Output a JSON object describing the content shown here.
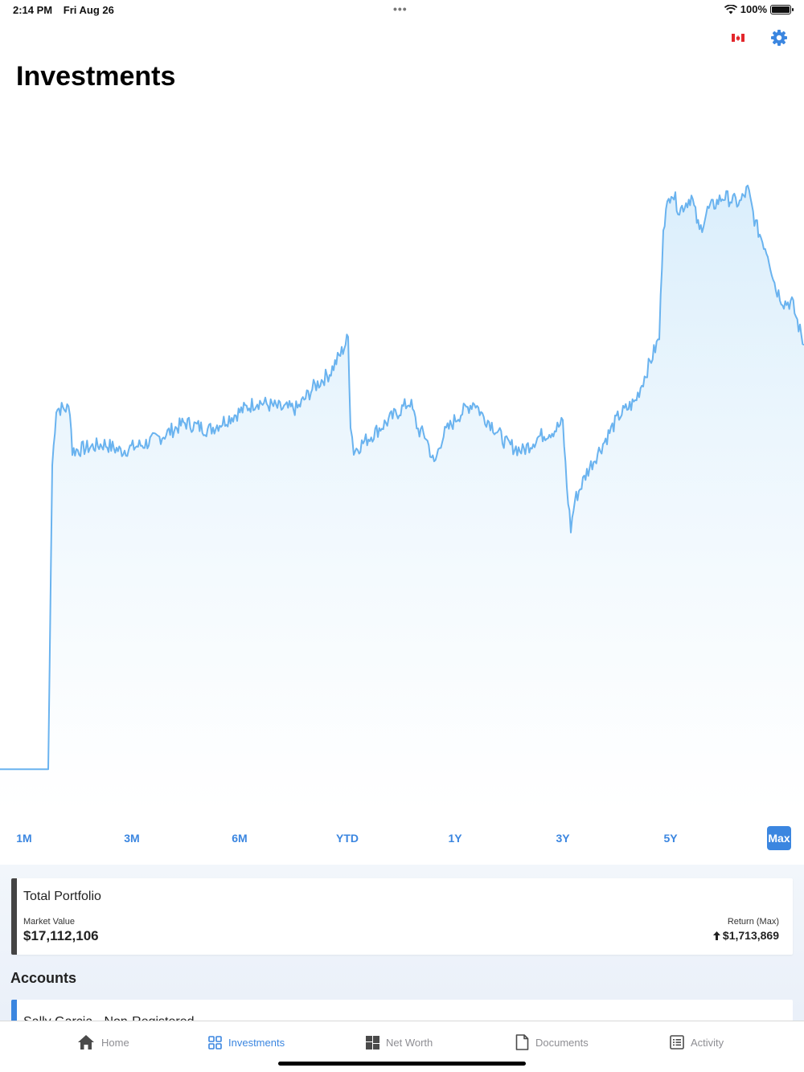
{
  "status_bar": {
    "time": "2:14 PM",
    "date": "Fri Aug 26",
    "battery": "100%"
  },
  "header": {
    "title": "Investments",
    "flag_icon": "canada-flag-icon",
    "settings_icon": "gear-icon",
    "accent": "#3b86e0"
  },
  "chart_data": {
    "type": "area",
    "color": "#6ab3ef",
    "points": [
      [
        0,
        6
      ],
      [
        0.06,
        6
      ],
      [
        0.065,
        49
      ],
      [
        0.07,
        57
      ],
      [
        0.08,
        57
      ],
      [
        0.087,
        57
      ],
      [
        0.09,
        51
      ],
      [
        0.13,
        52
      ],
      [
        0.15,
        51
      ],
      [
        0.18,
        52
      ],
      [
        0.2,
        53
      ],
      [
        0.23,
        55
      ],
      [
        0.26,
        54
      ],
      [
        0.29,
        56
      ],
      [
        0.32,
        58
      ],
      [
        0.35,
        57
      ],
      [
        0.37,
        57
      ],
      [
        0.39,
        60
      ],
      [
        0.41,
        62
      ],
      [
        0.425,
        65
      ],
      [
        0.433,
        67
      ],
      [
        0.436,
        55
      ],
      [
        0.44,
        51
      ],
      [
        0.47,
        54
      ],
      [
        0.5,
        57
      ],
      [
        0.51,
        58
      ],
      [
        0.52,
        54
      ],
      [
        0.53,
        53
      ],
      [
        0.54,
        49
      ],
      [
        0.55,
        53
      ],
      [
        0.57,
        56
      ],
      [
        0.59,
        58
      ],
      [
        0.6,
        56
      ],
      [
        0.61,
        55
      ],
      [
        0.63,
        52
      ],
      [
        0.65,
        51
      ],
      [
        0.67,
        53
      ],
      [
        0.69,
        54
      ],
      [
        0.7,
        55
      ],
      [
        0.705,
        46
      ],
      [
        0.71,
        40
      ],
      [
        0.715,
        44
      ],
      [
        0.73,
        48
      ],
      [
        0.75,
        52
      ],
      [
        0.77,
        56
      ],
      [
        0.79,
        58
      ],
      [
        0.8,
        61
      ],
      [
        0.81,
        64
      ],
      [
        0.82,
        67
      ],
      [
        0.825,
        83
      ],
      [
        0.835,
        88
      ],
      [
        0.845,
        85
      ],
      [
        0.86,
        87
      ],
      [
        0.87,
        82
      ],
      [
        0.88,
        85
      ],
      [
        0.9,
        87
      ],
      [
        0.92,
        86
      ],
      [
        0.93,
        88
      ],
      [
        0.94,
        83
      ],
      [
        0.955,
        79
      ],
      [
        0.965,
        74
      ],
      [
        0.975,
        72
      ],
      [
        0.985,
        72
      ],
      [
        0.995,
        68
      ],
      [
        1.0,
        66
      ]
    ],
    "ylim": [
      0,
      100
    ]
  },
  "ranges": [
    "1M",
    "3M",
    "6M",
    "YTD",
    "1Y",
    "3Y",
    "5Y",
    "Max"
  ],
  "active_range": "Max",
  "portfolio": {
    "title": "Total Portfolio",
    "market_value_label": "Market Value",
    "market_value": "$17,112,106",
    "return_label": "Return (Max)",
    "return_value": "$1,713,869",
    "return_icon": "arrow-up-icon"
  },
  "accounts": {
    "heading": "Accounts",
    "items": [
      {
        "name": "Sally Garcia - Non-Registered"
      }
    ]
  },
  "tabs": [
    {
      "label": "Home",
      "icon": "home-icon"
    },
    {
      "label": "Investments",
      "icon": "grid-icon"
    },
    {
      "label": "Net Worth",
      "icon": "tiles-icon"
    },
    {
      "label": "Documents",
      "icon": "document-icon"
    },
    {
      "label": "Activity",
      "icon": "list-icon"
    }
  ]
}
